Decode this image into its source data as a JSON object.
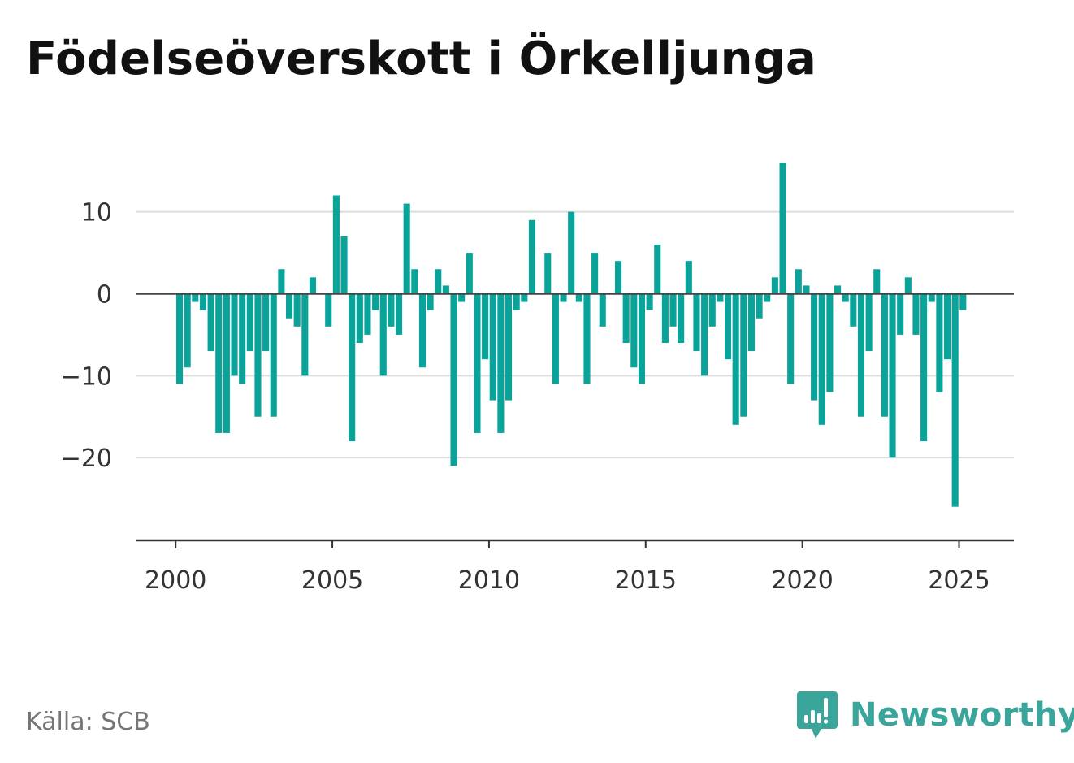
{
  "title": "Födelseöverskott i Örkelljunga",
  "source": "Källa: SCB",
  "brand": {
    "name": "Newsworthy",
    "icon": "newsworthy-logo-icon",
    "color": "#3aa69b"
  },
  "chart_data": {
    "type": "bar",
    "title": "Födelseöverskott i Örkelljunga",
    "xlabel": "",
    "ylabel": "",
    "color": "#0aa39a",
    "grid": true,
    "xlim": [
      1998.75,
      2026.75
    ],
    "ylim": [
      -30,
      18
    ],
    "x_ticks": [
      2000,
      2005,
      2010,
      2015,
      2020,
      2025
    ],
    "y_ticks": [
      10,
      0,
      -10,
      -20
    ],
    "y_tick_labels": [
      "10",
      "0",
      "−10",
      "−20"
    ],
    "start_year": 2000,
    "start_month": 1,
    "period_months": 3,
    "values": [
      -11,
      -9,
      -1,
      -2,
      -7,
      -17,
      -17,
      -10,
      -11,
      -7,
      -15,
      -7,
      -15,
      3,
      -3,
      -4,
      -10,
      2,
      0,
      -4,
      12,
      7,
      -18,
      -6,
      -5,
      -2,
      -10,
      -4,
      -5,
      11,
      3,
      -9,
      -2,
      3,
      1,
      -21,
      -1,
      5,
      -17,
      -8,
      -13,
      -17,
      -13,
      -2,
      -1,
      9,
      0,
      5,
      -11,
      -1,
      10,
      -1,
      -11,
      5,
      -4,
      0,
      4,
      -6,
      -9,
      -11,
      -2,
      6,
      -6,
      -4,
      -6,
      4,
      -7,
      -10,
      -4,
      -1,
      -8,
      -16,
      -15,
      -7,
      -3,
      -1,
      2,
      16,
      -11,
      3,
      1,
      -13,
      -16,
      -12,
      1,
      -1,
      -4,
      -15,
      -7,
      3,
      -15,
      -20,
      -5,
      2,
      -5,
      -18,
      -1,
      -12,
      -8,
      -26,
      -2
    ]
  }
}
